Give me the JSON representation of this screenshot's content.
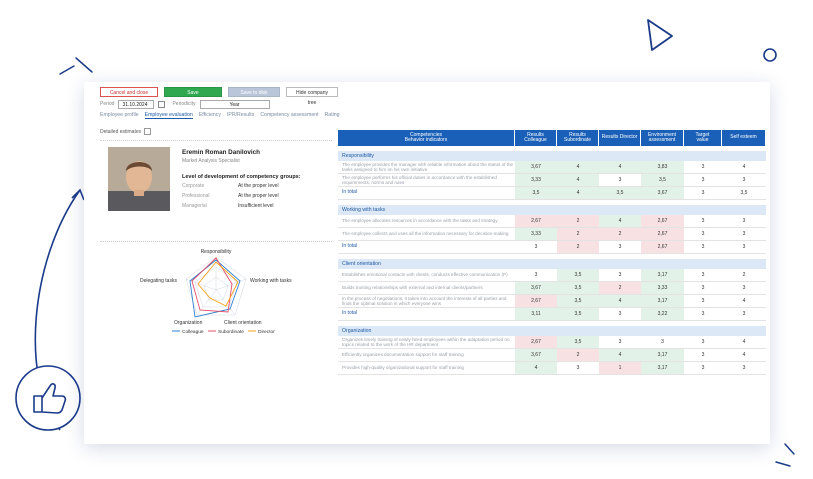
{
  "toolbar": {
    "cancel_label": "Cancel and close",
    "save_label": "Save",
    "save_disk_label": "Save to disk",
    "hide_tree_label": "Hide company tree"
  },
  "filters": {
    "period_label": "Period",
    "period_value": "31.10.2024",
    "periodicity_label": "Periodicity",
    "periodicity_value": "Year"
  },
  "tabs": [
    {
      "label": "Employee profile"
    },
    {
      "label": "Employee evaluation"
    },
    {
      "label": "Efficiency"
    },
    {
      "label": "IPR/Results"
    },
    {
      "label": "Competency assessment"
    },
    {
      "label": "Rating"
    }
  ],
  "detailed_label": "Detailed estimates",
  "profile": {
    "name": "Eremin Roman Danilovich",
    "position": "Market Analysis Specialist",
    "competency_title": "Level of development of competency groups:",
    "competencies": [
      {
        "group": "Corporate",
        "level": "At the proper level"
      },
      {
        "group": "Professional",
        "level": "At the proper level"
      },
      {
        "group": "Managerial",
        "level": "Insufficient level"
      }
    ]
  },
  "radar": {
    "axes": [
      "Responsibility",
      "Working with tasks",
      "Client orientation",
      "Organization",
      "Delegating tasks"
    ],
    "legend": [
      "Colleague",
      "Subordinate",
      "Director"
    ],
    "colors": {
      "Colleague": "#2f80d1",
      "Subordinate": "#e0506a",
      "Director": "#f3a21b"
    }
  },
  "table": {
    "headers": [
      "Competencies\nBehavior indicators",
      "Results\nColleague",
      "Results\nSubordinate",
      "Results Director",
      "Environment\nassessment",
      "Target\nvalue",
      "Self esteem"
    ],
    "groups": [
      {
        "title": "Responsibility",
        "rows": [
          {
            "text": "The employee provides the manager with reliable information about the status of the tasks assigned to him on his own initiative",
            "vals": [
              "3,67",
              "4",
              "4",
              "3,83",
              "3",
              "4"
            ],
            "cls": [
              "g",
              "g",
              "g",
              "g",
              "",
              ""
            ]
          },
          {
            "text": "The employee performs his official duties in accordance with the established requirements, norms and rules",
            "vals": [
              "3,33",
              "4",
              "3",
              "3,5",
              "3",
              "3"
            ],
            "cls": [
              "g",
              "g",
              "",
              "g",
              "",
              ""
            ]
          }
        ],
        "total": [
          "3,5",
          "4",
          "3,5",
          "3,67",
          "3",
          "3,5"
        ],
        "total_cls": [
          "g",
          "g",
          "g",
          "g",
          "",
          ""
        ]
      },
      {
        "title": "Working with tasks",
        "rows": [
          {
            "text": "The employee allocates resources in accordance with the tasks and strategy",
            "vals": [
              "2,67",
              "2",
              "4",
              "2,67",
              "3",
              "3"
            ],
            "cls": [
              "r",
              "r",
              "g",
              "r",
              "",
              ""
            ]
          },
          {
            "text": "The employee collects and uses all the information necessary for decision-making",
            "vals": [
              "3,33",
              "2",
              "2",
              "2,67",
              "3",
              "3"
            ],
            "cls": [
              "g",
              "r",
              "r",
              "r",
              "",
              ""
            ]
          }
        ],
        "total": [
          "3",
          "2",
          "3",
          "2,67",
          "3",
          "3"
        ],
        "total_cls": [
          "",
          "r",
          "",
          "r",
          "",
          ""
        ]
      },
      {
        "title": "Client orientation",
        "rows": [
          {
            "text": "Establishes emotional contacts with clients, conducts effective communication (P)",
            "vals": [
              "3",
              "3,5",
              "3",
              "3,17",
              "3",
              "2"
            ],
            "cls": [
              "",
              "g",
              "",
              "g",
              "",
              ""
            ]
          },
          {
            "text": "Builds trusting relationships with external and internal clients/partners",
            "vals": [
              "3,67",
              "3,5",
              "2",
              "3,33",
              "3",
              "3"
            ],
            "cls": [
              "g",
              "g",
              "r",
              "g",
              "",
              ""
            ]
          },
          {
            "text": "In the process of negotiations, it takes into account the interests of all parties and finds the optimal solution in which everyone wins",
            "vals": [
              "2,67",
              "3,5",
              "4",
              "3,17",
              "3",
              "4"
            ],
            "cls": [
              "r",
              "g",
              "g",
              "g",
              "",
              ""
            ]
          }
        ],
        "total": [
          "3,11",
          "3,5",
          "3",
          "3,22",
          "3",
          "3"
        ],
        "total_cls": [
          "g",
          "g",
          "",
          "g",
          "",
          ""
        ]
      },
      {
        "title": "Organization",
        "rows": [
          {
            "text": "Organizes timely training of newly hired employees within the adaptation period on topics related to the work of the HR department",
            "vals": [
              "2,67",
              "3,5",
              "3",
              "3",
              "3",
              "4"
            ],
            "cls": [
              "r",
              "g",
              "",
              "",
              "",
              ""
            ]
          },
          {
            "text": "Efficiently organizes documentation support for staff training",
            "vals": [
              "3,67",
              "2",
              "4",
              "3,17",
              "3",
              "4"
            ],
            "cls": [
              "g",
              "r",
              "g",
              "g",
              "",
              ""
            ]
          },
          {
            "text": "Provides high-quality organizational support for staff training",
            "vals": [
              "4",
              "3",
              "1",
              "3,17",
              "3",
              "3"
            ],
            "cls": [
              "g",
              "",
              "r",
              "g",
              "",
              ""
            ]
          }
        ]
      }
    ]
  }
}
